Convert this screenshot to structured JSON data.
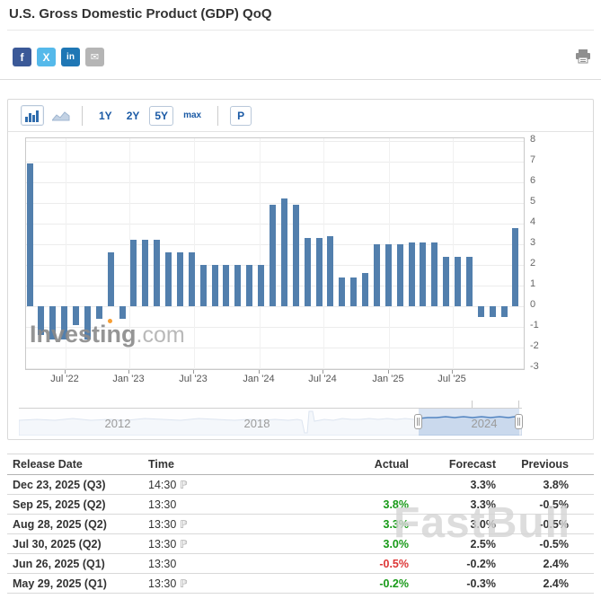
{
  "header": {
    "title": "U.S. Gross Domestic Product (GDP) QoQ"
  },
  "social": {
    "facebook": {
      "glyph": "f"
    },
    "twitter": {
      "glyph": "X"
    },
    "linkedin": {
      "glyph": "in"
    },
    "email": {
      "glyph": "✉"
    }
  },
  "toolbar": {
    "range1": "1Y",
    "range2": "2Y",
    "range5": "5Y",
    "rangeMax": "max",
    "p_button": "P"
  },
  "colors": {
    "bar": "#527fad",
    "accent_blue": "#1b5aa5",
    "green": "#189a18",
    "red": "#dd3636",
    "facebook": "#3b5998",
    "twitter": "#55b9ea",
    "linkedin": "#1f77b5",
    "email_gray": "#b5b5b5",
    "nav_selection_line": "#4a7ebb",
    "watermark_orange": "#f7941d"
  },
  "chart_data": {
    "type": "bar",
    "title": "U.S. Gross Domestic Product (GDP) QoQ",
    "ylim": [
      -3,
      8
    ],
    "yticks": [
      8,
      7,
      6,
      5,
      4,
      3,
      2,
      1,
      0,
      -1,
      -2,
      -3
    ],
    "x_tick_labels": [
      "Jul '22",
      "Jan '23",
      "Jul '23",
      "Jan '24",
      "Jul '24",
      "Jan '25",
      "Jul '25"
    ],
    "values": [
      6.9,
      -1.4,
      -1.6,
      -1.6,
      -0.9,
      -1.6,
      -0.6,
      2.6,
      -0.6,
      3.2,
      3.2,
      3.2,
      2.6,
      2.6,
      2.6,
      2.0,
      2.0,
      2.0,
      2.0,
      2.0,
      2.0,
      4.9,
      5.2,
      4.9,
      3.3,
      3.3,
      3.4,
      1.4,
      1.4,
      1.6,
      3.0,
      3.0,
      3.0,
      3.1,
      3.1,
      3.1,
      2.4,
      2.4,
      2.4,
      -0.5,
      -0.5,
      -0.5,
      3.8
    ],
    "grid": true,
    "legend": "none",
    "watermark": "Investing.com",
    "navigator": {
      "year_labels": [
        "2012",
        "2018",
        "2024"
      ]
    }
  },
  "table": {
    "columns": [
      "Release Date",
      "Time",
      "Actual",
      "Forecast",
      "Previous"
    ],
    "preliminary_glyph": "ℙ",
    "rows": [
      {
        "date": "Dec 23, 2025 (Q3)",
        "time": "14:30",
        "preliminary": true,
        "actual": "",
        "forecast": "3.3%",
        "previous": "3.8%",
        "actual_color": ""
      },
      {
        "date": "Sep 25, 2025 (Q2)",
        "time": "13:30",
        "preliminary": false,
        "actual": "3.8%",
        "forecast": "3.3%",
        "previous": "-0.5%",
        "actual_color": "green"
      },
      {
        "date": "Aug 28, 2025 (Q2)",
        "time": "13:30",
        "preliminary": true,
        "actual": "3.3%",
        "forecast": "3.0%",
        "previous": "-0.5%",
        "actual_color": "green"
      },
      {
        "date": "Jul 30, 2025 (Q2)",
        "time": "13:30",
        "preliminary": true,
        "actual": "3.0%",
        "forecast": "2.5%",
        "previous": "-0.5%",
        "actual_color": "green"
      },
      {
        "date": "Jun 26, 2025 (Q1)",
        "time": "13:30",
        "preliminary": false,
        "actual": "-0.5%",
        "forecast": "-0.2%",
        "previous": "2.4%",
        "actual_color": "red"
      },
      {
        "date": "May 29, 2025 (Q1)",
        "time": "13:30",
        "preliminary": true,
        "actual": "-0.2%",
        "forecast": "-0.3%",
        "previous": "2.4%",
        "actual_color": "green"
      }
    ]
  },
  "overlay_watermark": "FastBull"
}
